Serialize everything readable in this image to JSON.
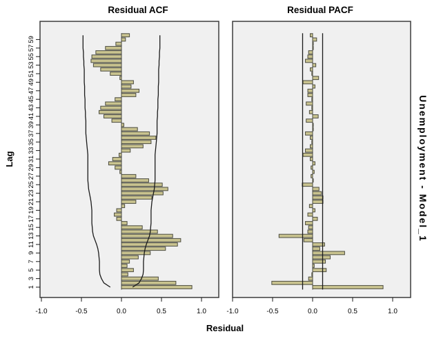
{
  "figure": {
    "x_axis_label": "Residual",
    "y_axis_label": "Lag",
    "right_label": "Unemployment - Model_1",
    "x_tick_labels": [
      "-1.0",
      "-0.5",
      "0.0",
      "0.5",
      "1.0"
    ],
    "x_tick_values": [
      -1.0,
      -0.5,
      0.0,
      0.5,
      1.0
    ],
    "lag_tick_labels": [
      1,
      3,
      5,
      7,
      9,
      11,
      13,
      15,
      17,
      19,
      21,
      23,
      25,
      27,
      29,
      31,
      33,
      35,
      37,
      39,
      41,
      43,
      45,
      47,
      49,
      51,
      53,
      55,
      57,
      59
    ]
  },
  "colors": {
    "page_bg": "#ffffff",
    "panel_bg": "#f0f0f0",
    "panel_border": "#3c3c3c",
    "bar_fill": "#c9c38f",
    "bar_stroke": "#4c4c40",
    "line": "#1a1a1a",
    "text": "#000000"
  },
  "chart_data": [
    {
      "type": "bar",
      "orientation": "horizontal",
      "title": "Residual ACF",
      "xlabel": "Residual",
      "ylabel": "Lag",
      "xlim": [
        -1.0,
        1.0
      ],
      "lag_range": [
        1,
        60
      ],
      "values": [
        0.88,
        0.68,
        0.46,
        0.08,
        0.15,
        0.07,
        0.1,
        0.21,
        0.36,
        0.55,
        0.7,
        0.74,
        0.64,
        0.45,
        0.26,
        0.07,
        -0.06,
        -0.09,
        -0.06,
        0.04,
        0.18,
        0.38,
        0.52,
        0.58,
        0.51,
        0.34,
        0.18,
        -0.02,
        -0.08,
        -0.16,
        -0.11,
        -0.03,
        0.11,
        0.27,
        0.37,
        0.43,
        0.35,
        0.2,
        0.03,
        -0.12,
        -0.22,
        -0.28,
        -0.26,
        -0.2,
        -0.08,
        0.18,
        0.22,
        0.12,
        0.15,
        -0.02,
        -0.14,
        -0.26,
        -0.35,
        -0.38,
        -0.37,
        -0.32,
        -0.2,
        -0.07,
        0.05,
        0.1
      ],
      "conf_upper": [
        0.14,
        0.22,
        0.25,
        0.27,
        0.275,
        0.275,
        0.275,
        0.28,
        0.285,
        0.295,
        0.31,
        0.33,
        0.35,
        0.36,
        0.365,
        0.37,
        0.37,
        0.37,
        0.37,
        0.375,
        0.38,
        0.39,
        0.4,
        0.41,
        0.415,
        0.42,
        0.42,
        0.42,
        0.42,
        0.42,
        0.42,
        0.42,
        0.425,
        0.43,
        0.435,
        0.44,
        0.445,
        0.445,
        0.445,
        0.445,
        0.45,
        0.45,
        0.455,
        0.455,
        0.455,
        0.46,
        0.46,
        0.46,
        0.465,
        0.465,
        0.465,
        0.465,
        0.47,
        0.47,
        0.475,
        0.475,
        0.48,
        0.48,
        0.48,
        0.48
      ],
      "conf_symmetric": true
    },
    {
      "type": "bar",
      "orientation": "horizontal",
      "title": "Residual PACF",
      "xlabel": "Residual",
      "ylabel": "Lag",
      "xlim": [
        -1.0,
        1.0
      ],
      "lag_range": [
        1,
        60
      ],
      "values": [
        0.88,
        -0.51,
        -0.05,
        -0.01,
        0.17,
        0.02,
        0.16,
        0.22,
        0.4,
        0.09,
        0.15,
        -0.11,
        -0.42,
        -0.06,
        -0.05,
        -0.09,
        0.06,
        -0.06,
        0.03,
        -0.04,
        0.13,
        0.13,
        0.11,
        0.08,
        -0.13,
        0.0,
        -0.02,
        0.02,
        -0.02,
        0.03,
        -0.03,
        -0.12,
        -0.09,
        -0.03,
        -0.01,
        -0.03,
        -0.09,
        0.0,
        0.0,
        -0.08,
        0.07,
        -0.04,
        -0.01,
        -0.08,
        -0.01,
        -0.06,
        -0.06,
        0.03,
        -0.12,
        0.075,
        -0.01,
        -0.03,
        0.04,
        -0.09,
        -0.06,
        -0.05,
        0.0,
        0.0,
        0.05,
        -0.03
      ],
      "conf_bound": 0.125
    }
  ]
}
